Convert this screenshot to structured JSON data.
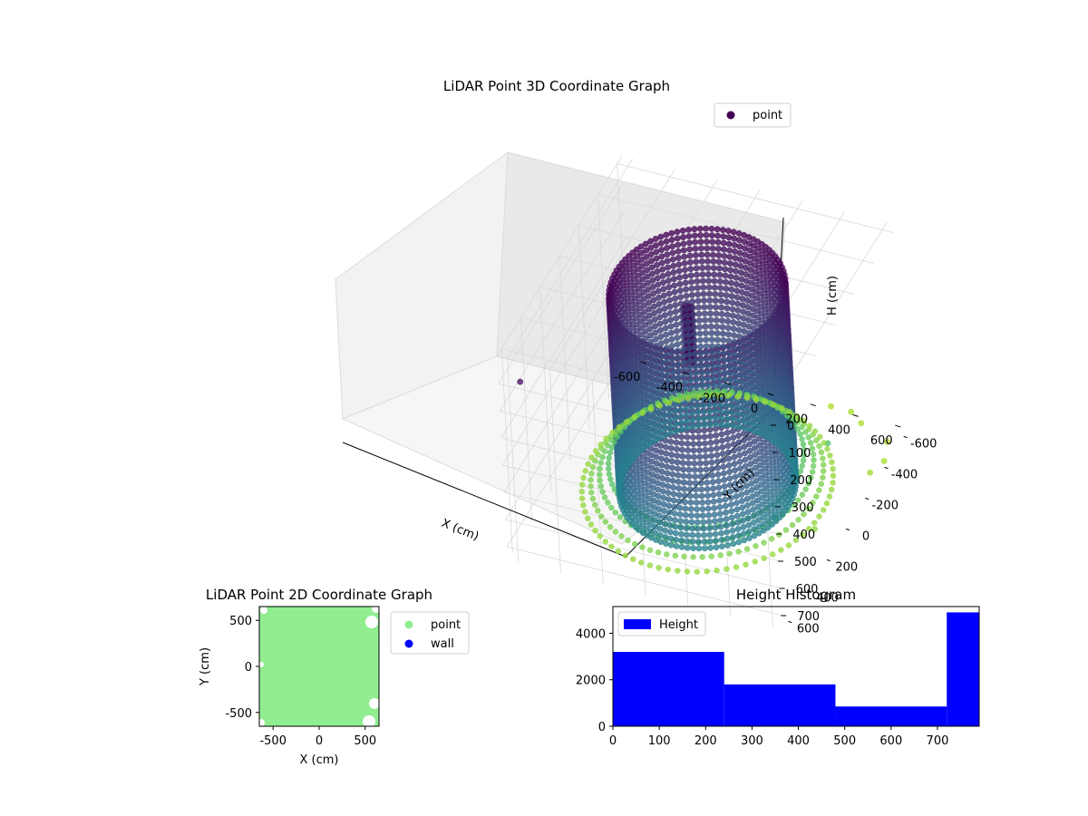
{
  "chart_data": [
    {
      "type": "scatter",
      "title": "LiDAR Point 3D Coordinate Graph",
      "xlabel": "X (cm)",
      "ylabel": "Y (cm)",
      "zlabel": "H (cm)",
      "xlim": [
        -650,
        650
      ],
      "ylim": [
        -650,
        650
      ],
      "zlim": [
        0,
        750
      ],
      "x_ticks": [
        "-600",
        "-400",
        "-200",
        "0",
        "200",
        "400",
        "600"
      ],
      "y_ticks": [
        "-600",
        "-400",
        "-200",
        "0",
        "200",
        "400",
        "600"
      ],
      "z_ticks": [
        "0",
        "100",
        "200",
        "300",
        "400",
        "500",
        "600",
        "700"
      ],
      "z_inverted": true,
      "grid": true,
      "legend_position": "top-right",
      "colormap": "viridis",
      "series": [
        {
          "name": "point",
          "color": "#440154",
          "structure": "cylindrical-wall",
          "radius": 380,
          "h_min": 0,
          "h_max": 720,
          "inner_object": {
            "x": -40,
            "y": 20,
            "h_min": 60,
            "h_max": 250
          }
        }
      ],
      "scattered_points": [
        {
          "x": -520,
          "y": 700,
          "h": 40
        },
        {
          "x": 500,
          "y": 380,
          "h": 520
        },
        {
          "x": 470,
          "y": -230,
          "h": 600
        },
        {
          "x": 560,
          "y": 120,
          "h": 700
        },
        {
          "x": 620,
          "y": -320,
          "h": 730
        },
        {
          "x": 640,
          "y": -420,
          "h": 740
        },
        {
          "x": 600,
          "y": -540,
          "h": 745
        },
        {
          "x": 450,
          "y": -600,
          "h": 740
        },
        {
          "x": 380,
          "y": -650,
          "h": 740
        },
        {
          "x": 280,
          "y": -660,
          "h": 745
        }
      ]
    },
    {
      "type": "scatter",
      "title": "LiDAR Point 2D Coordinate Graph",
      "xlabel": "X (cm)",
      "ylabel": "Y (cm)",
      "xlim": [
        -650,
        650
      ],
      "ylim": [
        -650,
        650
      ],
      "x_ticks": [
        -500,
        0,
        500
      ],
      "y_ticks": [
        -500,
        0,
        500
      ],
      "legend_position": "outside-right",
      "series": [
        {
          "name": "point",
          "color": "#90ee90",
          "coverage": "full-square"
        },
        {
          "name": "wall",
          "color": "#0000ff"
        }
      ]
    },
    {
      "type": "bar",
      "title": "Height Histogram",
      "xlabel": "",
      "ylabel": "",
      "bin_edges": [
        0,
        240,
        480,
        720,
        790
      ],
      "values": [
        3200,
        1800,
        850,
        4900
      ],
      "xlim": [
        0,
        790
      ],
      "ylim": [
        0,
        5150
      ],
      "x_ticks": [
        0,
        100,
        200,
        300,
        400,
        500,
        600,
        700
      ],
      "y_ticks": [
        0,
        2000,
        4000
      ],
      "color": "#0000ff",
      "legend_position": "top-left",
      "series": [
        {
          "name": "Height",
          "color": "#0000ff"
        }
      ]
    }
  ]
}
